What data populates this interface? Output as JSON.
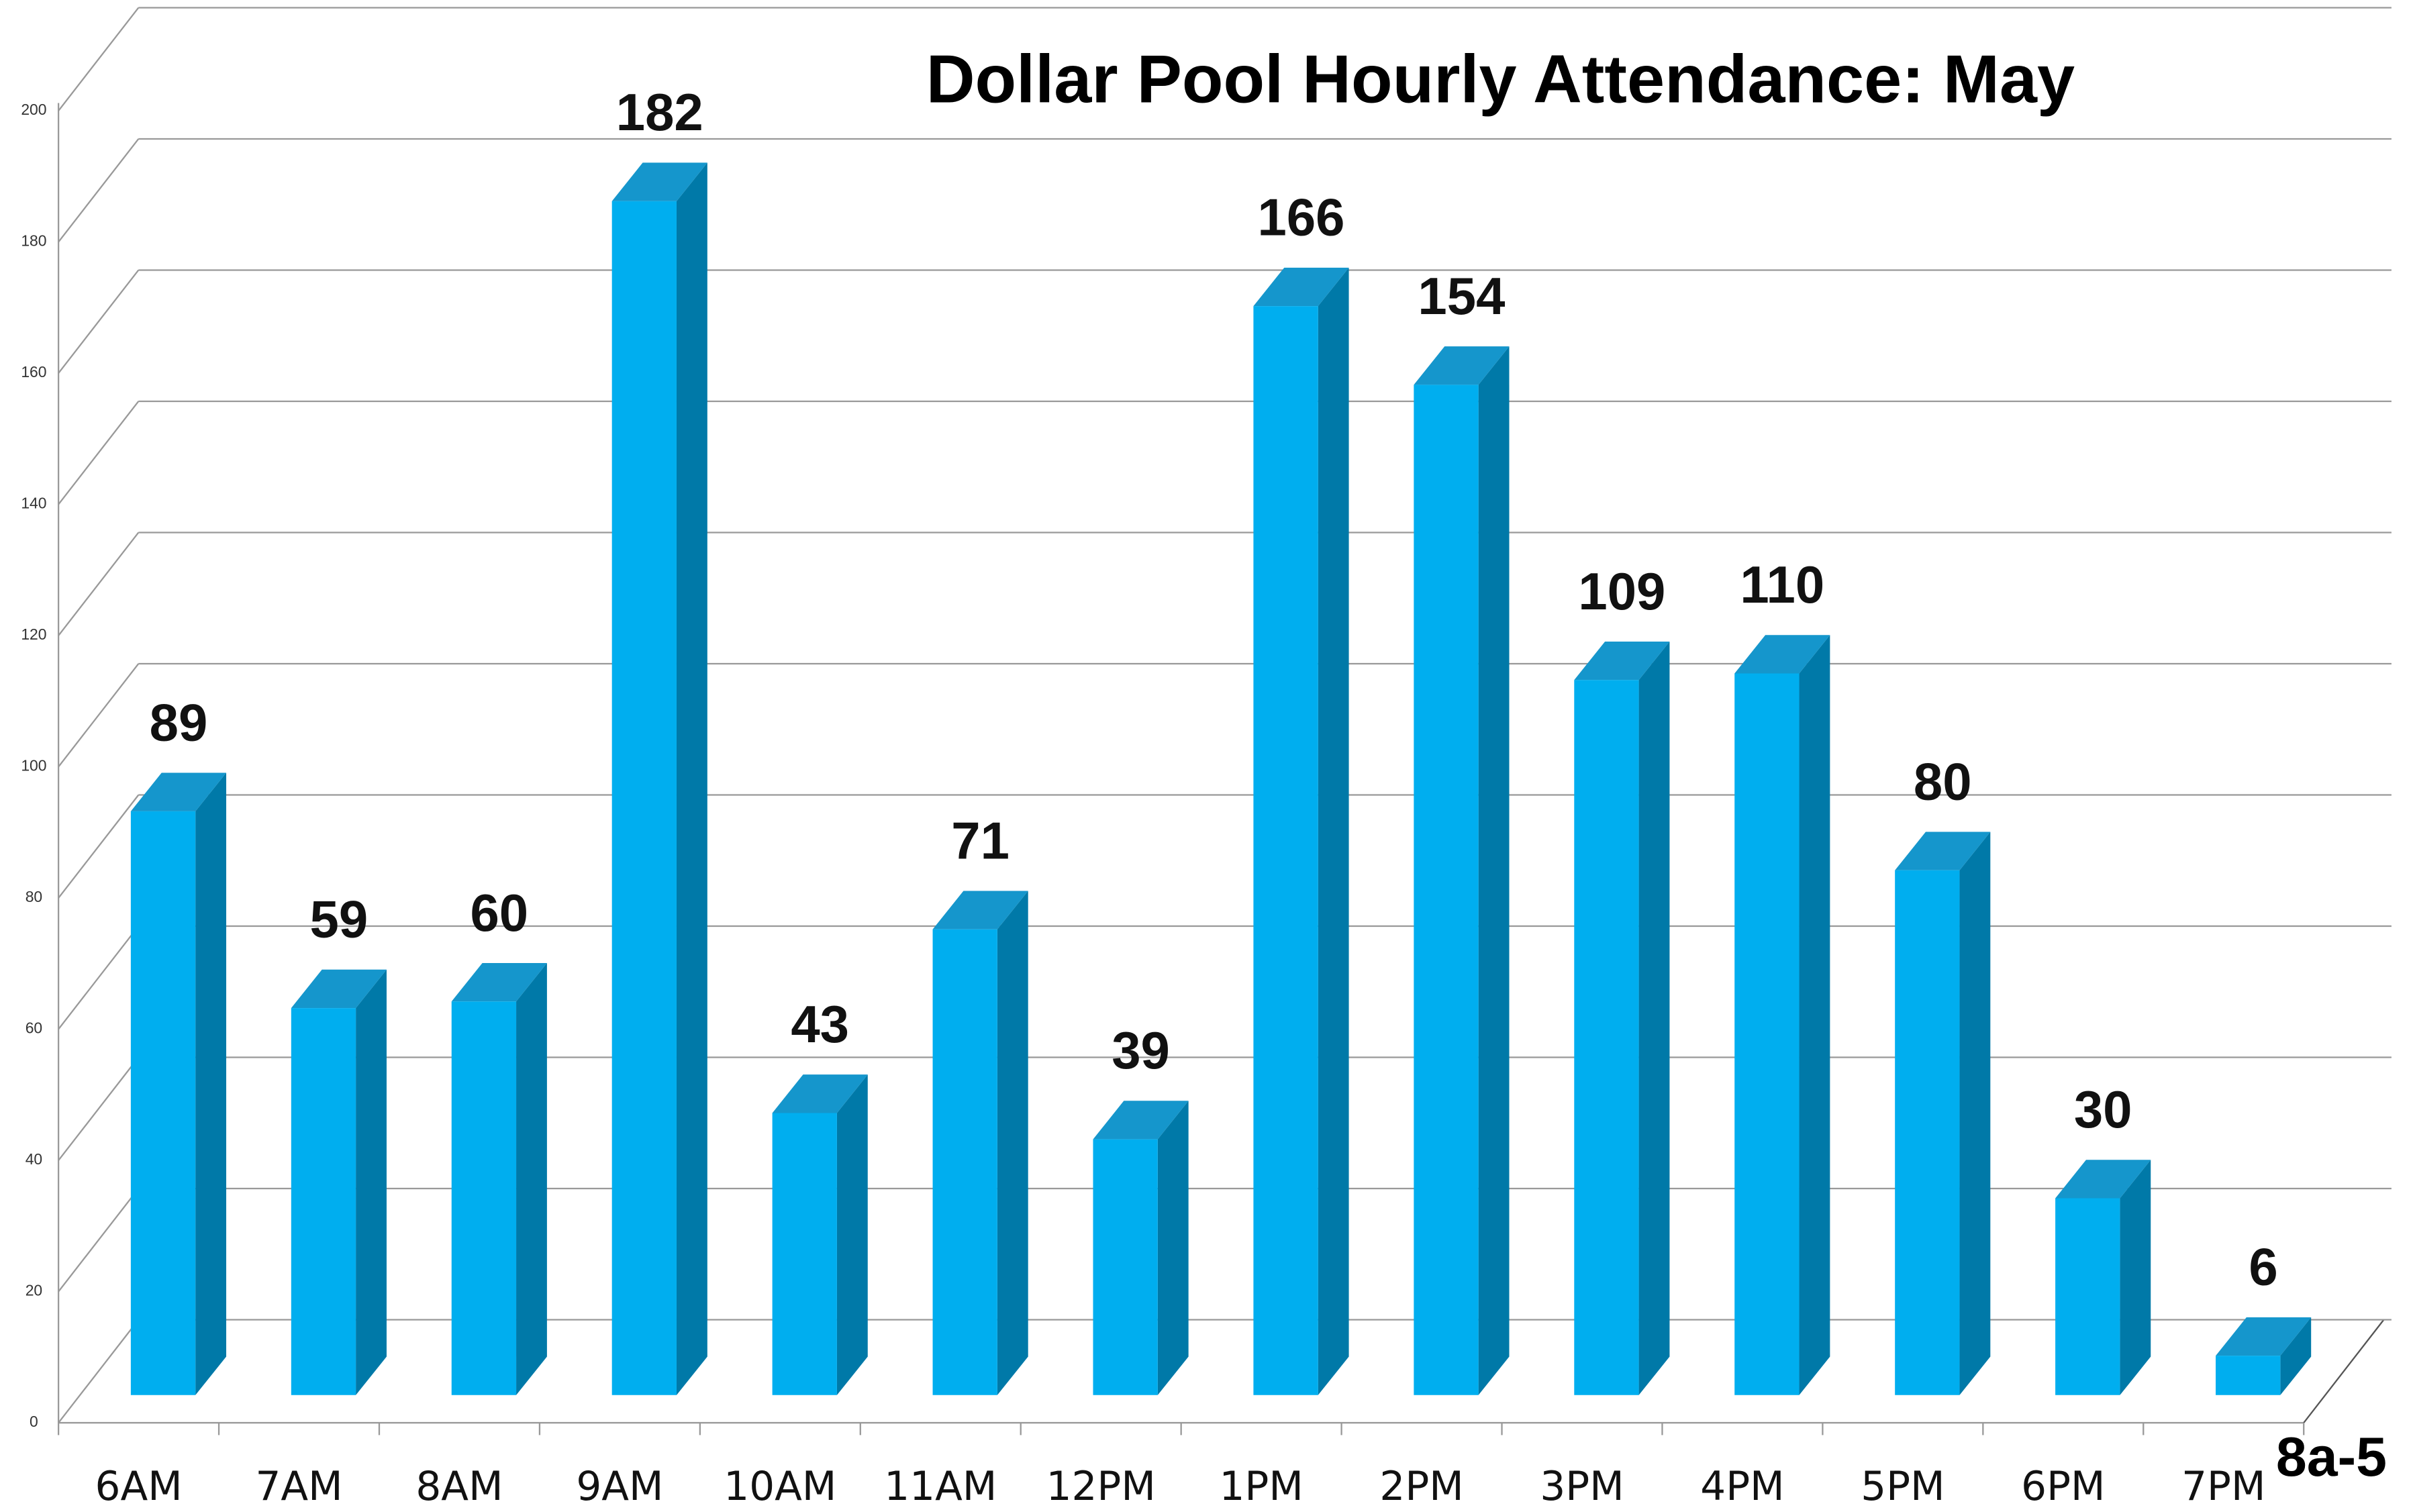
{
  "chart_data": {
    "type": "bar3d",
    "title": "Dollar Pool Hourly Attendance: May",
    "annotation": "8a-5",
    "categories": [
      "6AM",
      "7AM",
      "8AM",
      "9AM",
      "10AM",
      "11AM",
      "12PM",
      "1PM",
      "2PM",
      "3PM",
      "4PM",
      "5PM",
      "6PM",
      "7PM"
    ],
    "values": [
      89,
      59,
      60,
      182,
      43,
      71,
      39,
      166,
      154,
      109,
      110,
      80,
      30,
      6
    ],
    "color": "#00aeef",
    "ylim": [
      0,
      200
    ],
    "yticks": [
      0,
      20,
      40,
      60,
      80,
      100,
      120,
      140,
      160,
      180,
      200
    ],
    "grid": true
  }
}
